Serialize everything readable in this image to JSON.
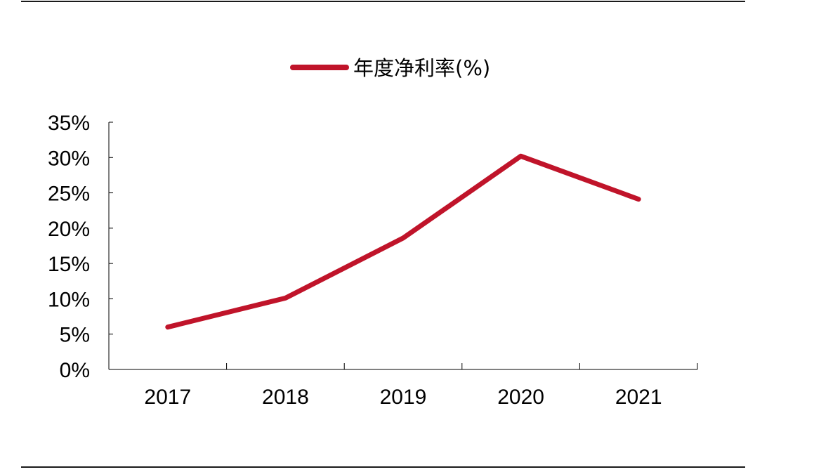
{
  "chart_data": {
    "type": "line",
    "title": "",
    "xlabel": "",
    "ylabel": "",
    "categories": [
      "2017",
      "2018",
      "2019",
      "2020",
      "2021"
    ],
    "series": [
      {
        "name": "年度净利率(%)",
        "values": [
          6.0,
          10.1,
          18.6,
          30.2,
          24.1
        ],
        "color": "#c0142a"
      }
    ],
    "y_ticks": [
      "0%",
      "5%",
      "10%",
      "15%",
      "20%",
      "25%",
      "30%",
      "35%"
    ],
    "ylim": [
      0,
      35
    ],
    "legend_position": "top-center",
    "grid": false
  }
}
